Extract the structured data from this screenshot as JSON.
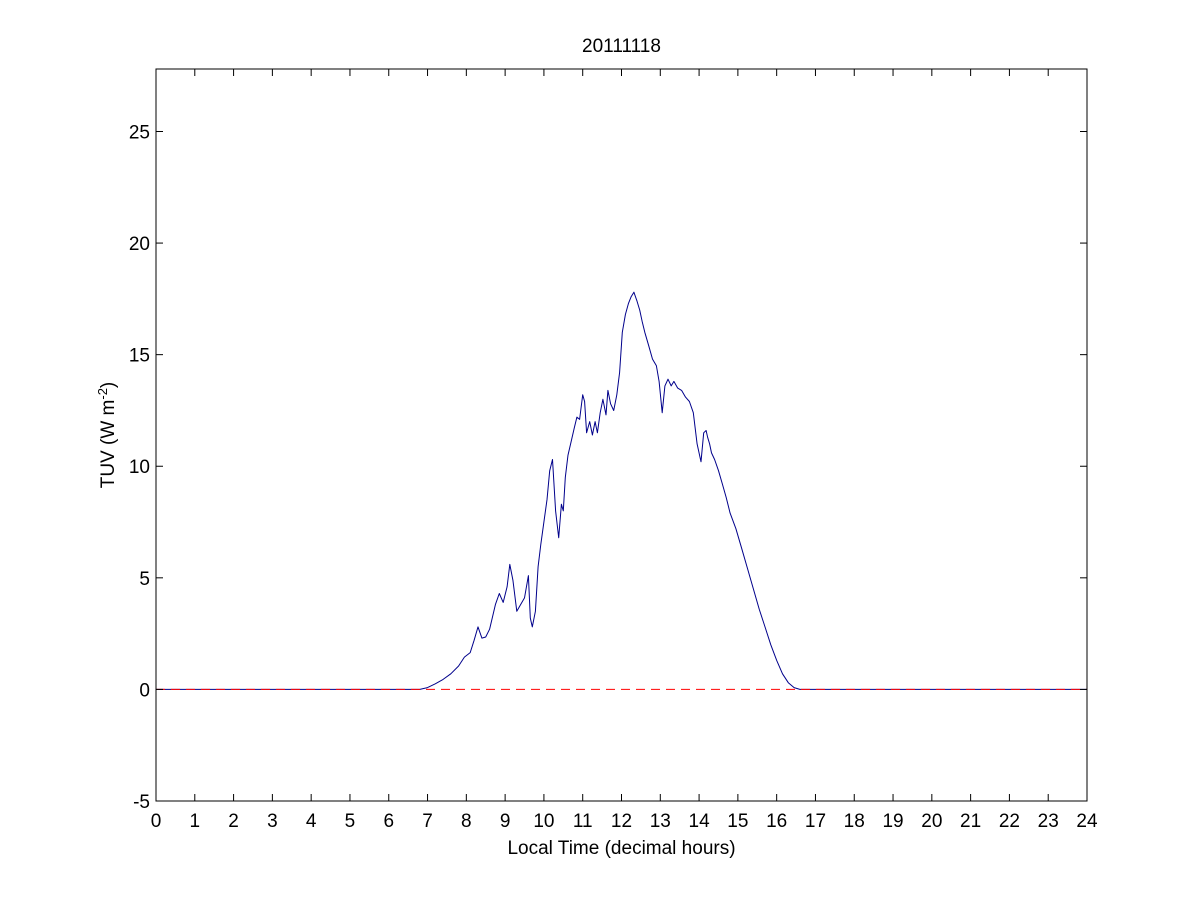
{
  "chart_data": {
    "type": "line",
    "title": "20111118",
    "xlabel": "Local Time (decimal hours)",
    "ylabel": {
      "main": "TUV (W m",
      "sup": "-2",
      "close": ")"
    },
    "xlim": [
      0,
      24
    ],
    "ylim": [
      -5,
      27.8
    ],
    "xticks": [
      0,
      1,
      2,
      3,
      4,
      5,
      6,
      7,
      8,
      9,
      10,
      11,
      12,
      13,
      14,
      15,
      16,
      17,
      18,
      19,
      20,
      21,
      22,
      23,
      24
    ],
    "yticks": [
      -5,
      0,
      5,
      10,
      15,
      20,
      25
    ],
    "grid": false,
    "colors": {
      "tuv": "#00008b",
      "zero": "#ff0000"
    },
    "series": [
      {
        "x": [
          0,
          6.8,
          7.0,
          7.2,
          7.4,
          7.6,
          7.8,
          7.95,
          8.1,
          8.2,
          8.3,
          8.4,
          8.5,
          8.6,
          8.75,
          8.85,
          8.95,
          9.05,
          9.12,
          9.2,
          9.3,
          9.4,
          9.5,
          9.6,
          9.65,
          9.7,
          9.78,
          9.85,
          9.92,
          10.0,
          10.08,
          10.15,
          10.22,
          10.3,
          10.38,
          10.45,
          10.5,
          10.55,
          10.62,
          10.7,
          10.78,
          10.85,
          10.92,
          11.0,
          11.05,
          11.1,
          11.18,
          11.25,
          11.32,
          11.38,
          11.45,
          11.52,
          11.6,
          11.65,
          11.72,
          11.8,
          11.88,
          11.95,
          12.02,
          12.1,
          12.18,
          12.25,
          12.32,
          12.4,
          12.47,
          12.53,
          12.6,
          12.7,
          12.8,
          12.9,
          12.97,
          13.05,
          13.12,
          13.2,
          13.28,
          13.35,
          13.45,
          13.55,
          13.65,
          13.75,
          13.85,
          13.95,
          14.05,
          14.12,
          14.18,
          14.22,
          14.27,
          14.32,
          14.4,
          14.5,
          14.6,
          14.7,
          14.8,
          14.95,
          15.1,
          15.25,
          15.4,
          15.55,
          15.7,
          15.85,
          16.0,
          16.15,
          16.3,
          16.45,
          16.6,
          16.75,
          16.9,
          17.0,
          17.1,
          17.2,
          17.3,
          24
        ],
        "values": [
          0,
          0,
          0.08,
          0.25,
          0.45,
          0.7,
          1.05,
          1.45,
          1.65,
          2.2,
          2.8,
          2.3,
          2.35,
          2.7,
          3.8,
          4.3,
          3.9,
          4.6,
          5.6,
          4.9,
          3.5,
          3.8,
          4.1,
          5.1,
          3.2,
          2.8,
          3.5,
          5.5,
          6.5,
          7.5,
          8.5,
          9.8,
          10.3,
          8.0,
          6.8,
          8.3,
          8.0,
          9.5,
          10.5,
          11.1,
          11.7,
          12.2,
          12.1,
          13.2,
          12.9,
          11.5,
          12.0,
          11.4,
          12.0,
          11.5,
          12.4,
          13.0,
          12.3,
          13.4,
          12.8,
          12.5,
          13.2,
          14.2,
          16.0,
          16.8,
          17.3,
          17.6,
          17.8,
          17.4,
          17.0,
          16.5,
          16.0,
          15.4,
          14.8,
          14.5,
          13.8,
          12.4,
          13.6,
          13.9,
          13.6,
          13.8,
          13.5,
          13.4,
          13.1,
          12.9,
          12.4,
          11.0,
          10.2,
          11.5,
          11.6,
          11.3,
          11.0,
          10.6,
          10.3,
          9.8,
          9.2,
          8.6,
          7.9,
          7.2,
          6.3,
          5.4,
          4.5,
          3.6,
          2.8,
          2.0,
          1.3,
          0.7,
          0.3,
          0.08,
          0,
          0,
          0,
          0,
          0,
          0,
          0,
          0
        ]
      },
      {
        "x": [
          0,
          24
        ],
        "values": [
          0,
          0
        ],
        "style": "dashed"
      }
    ]
  }
}
